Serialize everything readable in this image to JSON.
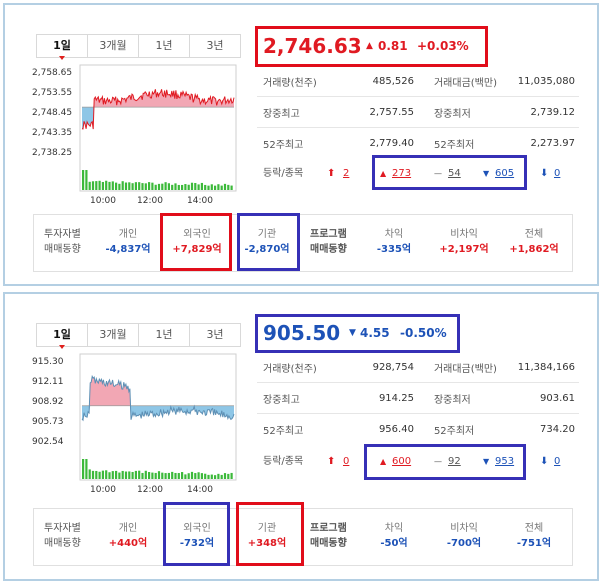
{
  "panels": [
    {
      "tabs": [
        "1일",
        "3개월",
        "1년",
        "3년"
      ],
      "active_tab": 0,
      "price": "2,746.63",
      "change_arrow": "▲",
      "change": "0.81",
      "change_pct": "+0.03%",
      "direction": "up",
      "y_ticks": [
        "2,758.65",
        "2,753.55",
        "2,748.45",
        "2,743.35",
        "2,738.25"
      ],
      "x_ticks": [
        "10:00",
        "12:00",
        "14:00"
      ],
      "baseline_level": 0.45,
      "stats": [
        {
          "label1": "거래량(천주)",
          "value1": "485,526",
          "label2": "거래대금(백만)",
          "value2": "11,035,080"
        },
        {
          "label1": "장중최고",
          "value1": "2,757.55",
          "label2": "장중최저",
          "value2": "2,739.12"
        },
        {
          "label1": "52주최고",
          "value1": "2,779.40",
          "label2": "52주최저",
          "value2": "2,273.97"
        }
      ],
      "breadth": {
        "label": "등락/종목",
        "upper_limit_arrow": "⬆",
        "upper_limit": "2",
        "rise_arrow": "▲",
        "rise": "273",
        "flat_sign": "—",
        "flat": "54",
        "fall_arrow": "▼",
        "fall": "605",
        "lower_limit_arrow": "⬇",
        "lower_limit": "0"
      },
      "investors": {
        "label_line1": "투자자별",
        "label_line2": "매매동향",
        "individual_label": "개인",
        "individual": "-4,837억",
        "foreign_label": "외국인",
        "foreign": "+7,829억",
        "institution_label": "기관",
        "institution": "-2,870억",
        "program_line1": "프로그램",
        "program_line2": "매매동향",
        "arbitrage_label": "차익",
        "arbitrage": "-335억",
        "nonarb_label": "비차익",
        "nonarb": "+2,197억",
        "total_label": "전체",
        "total": "+1,862억"
      },
      "colors": {
        "up": "#e01a22",
        "down": "#1d52b7",
        "fill_up": "#f2a7b4",
        "fill_down": "#8ec6e6",
        "volume": "#3cb93a"
      }
    },
    {
      "tabs": [
        "1일",
        "3개월",
        "1년",
        "3년"
      ],
      "active_tab": 0,
      "price": "905.50",
      "change_arrow": "▼",
      "change": "4.55",
      "change_pct": "-0.50%",
      "direction": "down",
      "y_ticks": [
        "915.30",
        "912.11",
        "908.92",
        "905.73",
        "902.54"
      ],
      "x_ticks": [
        "10:00",
        "12:00",
        "14:00"
      ],
      "baseline_level": 0.56,
      "stats": [
        {
          "label1": "거래량(천주)",
          "value1": "928,754",
          "label2": "거래대금(백만)",
          "value2": "11,384,166"
        },
        {
          "label1": "장중최고",
          "value1": "914.25",
          "label2": "장중최저",
          "value2": "903.61"
        },
        {
          "label1": "52주최고",
          "value1": "956.40",
          "label2": "52주최저",
          "value2": "734.20"
        }
      ],
      "breadth": {
        "label": "등락/종목",
        "upper_limit_arrow": "⬆",
        "upper_limit": "0",
        "rise_arrow": "▲",
        "rise": "600",
        "flat_sign": "—",
        "flat": "92",
        "fall_arrow": "▼",
        "fall": "953",
        "lower_limit_arrow": "⬇",
        "lower_limit": "0"
      },
      "investors": {
        "label_line1": "투자자별",
        "label_line2": "매매동향",
        "individual_label": "개인",
        "individual": "+440억",
        "foreign_label": "외국인",
        "foreign": "-732억",
        "institution_label": "기관",
        "institution": "+348억",
        "program_line1": "프로그램",
        "program_line2": "매매동향",
        "arbitrage_label": "차익",
        "arbitrage": "-50억",
        "nonarb_label": "비차익",
        "nonarb": "-700억",
        "total_label": "전체",
        "total": "-751억"
      },
      "colors": {
        "up": "#e01a22",
        "down": "#1d52b7",
        "fill_up": "#f2a7b4",
        "fill_down": "#8ec6e6",
        "volume": "#3cb93a"
      }
    }
  ]
}
